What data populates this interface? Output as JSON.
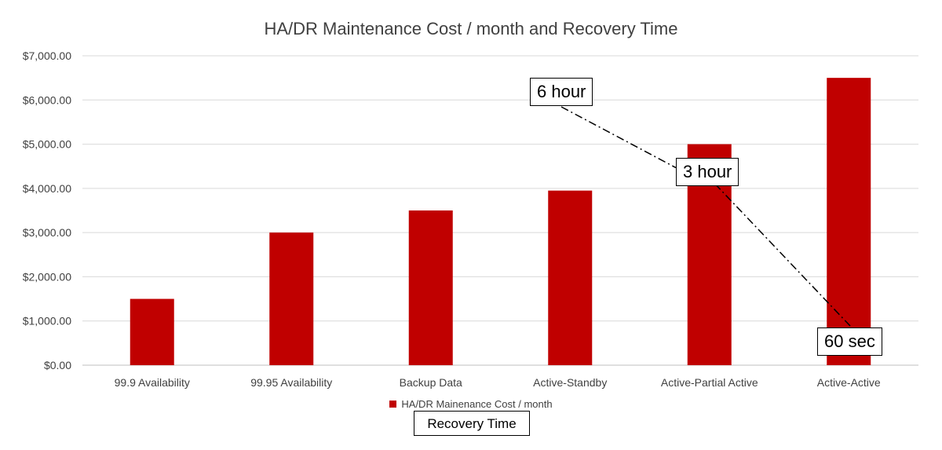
{
  "chart_data": {
    "type": "bar",
    "title": "HA/DR Maintenance Cost / month and Recovery Time",
    "categories": [
      "99.9 Availability",
      "99.95 Availability",
      "Backup Data",
      "Active-Standby",
      "Active-Partial Active",
      "Active-Active"
    ],
    "series": [
      {
        "name": "HA/DR Mainenance Cost / month",
        "values": [
          1500,
          3000,
          3500,
          3950,
          5000,
          6500
        ],
        "color": "#c00000"
      }
    ],
    "ylim": [
      0,
      7000
    ],
    "yticks": [
      "$0.00",
      "$1,000.00",
      "$2,000.00",
      "$3,000.00",
      "$4,000.00",
      "$5,000.00",
      "$6,000.00",
      "$7,000.00"
    ],
    "grid": true,
    "legend_position": "bottom",
    "annotations": {
      "recovery_labels": [
        "6 hour",
        "3 hour",
        "60 sec"
      ],
      "recovery_title": "Recovery Time",
      "line_style": "dash-dot"
    }
  }
}
